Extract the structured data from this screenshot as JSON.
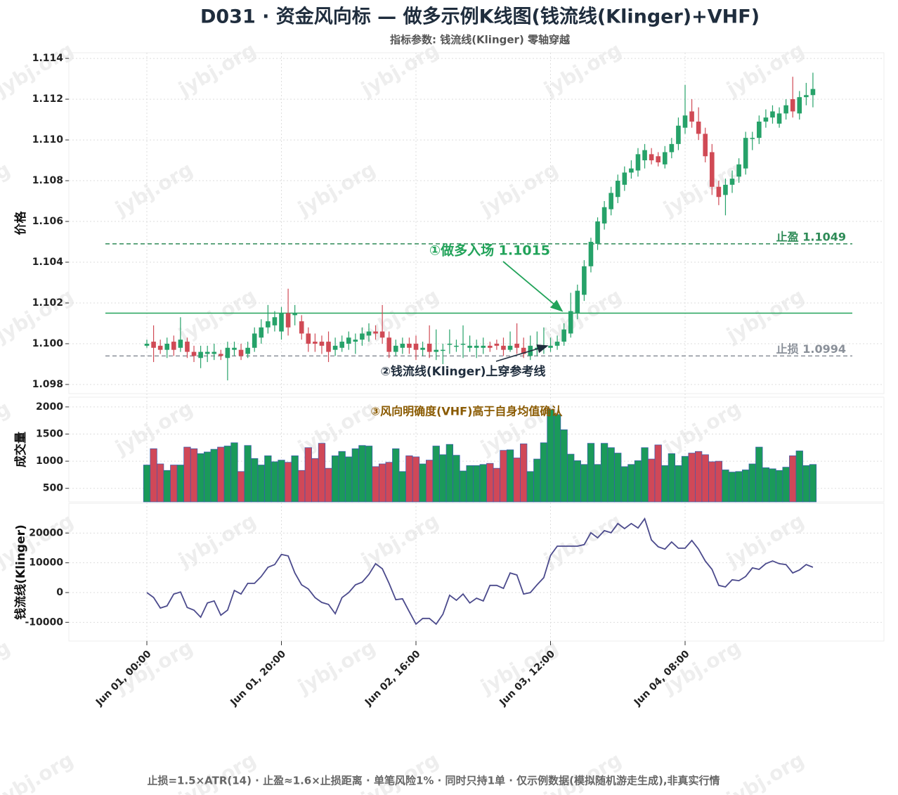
{
  "title": "D031 · 资金风向标 — 做多示例K线图(钱流线(Klinger)+VHF)",
  "subtitle": "指标参数: 钱流线(Klinger) 零轴穿越",
  "footnote": "止损=1.5×ATR(14) · 止盈≈1.6×止损距离 · 单笔风险1% · 同时只持1单 · 仅示例数据(模拟随机游走生成),非真实行情",
  "watermark": "jybj.org",
  "chart_data": [
    {
      "type": "candlestick",
      "y_label": "价格",
      "up_color": "#26a269",
      "down_color": "#d04a55",
      "grid": true,
      "x": [
        "Jun 01, 00:00",
        "Jun 01, 01:00",
        "Jun 01, 02:00",
        "Jun 01, 03:00",
        "Jun 01, 04:00",
        "Jun 01, 05:00",
        "Jun 01, 06:00",
        "Jun 01, 07:00",
        "Jun 01, 08:00",
        "Jun 01, 09:00",
        "Jun 01, 10:00",
        "Jun 01, 11:00",
        "Jun 01, 12:00",
        "Jun 01, 13:00",
        "Jun 01, 14:00",
        "Jun 01, 15:00",
        "Jun 01, 16:00",
        "Jun 01, 17:00",
        "Jun 01, 18:00",
        "Jun 01, 19:00",
        "Jun 01, 20:00",
        "Jun 01, 21:00",
        "Jun 01, 22:00",
        "Jun 01, 23:00",
        "Jun 02, 00:00",
        "Jun 02, 01:00",
        "Jun 02, 02:00",
        "Jun 02, 03:00",
        "Jun 02, 04:00",
        "Jun 02, 05:00",
        "Jun 02, 06:00",
        "Jun 02, 07:00",
        "Jun 02, 08:00",
        "Jun 02, 09:00",
        "Jun 02, 10:00",
        "Jun 02, 11:00",
        "Jun 02, 12:00",
        "Jun 02, 13:00",
        "Jun 02, 14:00",
        "Jun 02, 15:00",
        "Jun 02, 16:00",
        "Jun 02, 17:00",
        "Jun 02, 18:00",
        "Jun 02, 19:00",
        "Jun 02, 20:00",
        "Jun 02, 21:00",
        "Jun 02, 22:00",
        "Jun 02, 23:00",
        "Jun 03, 00:00",
        "Jun 03, 01:00",
        "Jun 03, 02:00",
        "Jun 03, 03:00",
        "Jun 03, 04:00",
        "Jun 03, 05:00",
        "Jun 03, 06:00",
        "Jun 03, 07:00",
        "Jun 03, 08:00",
        "Jun 03, 09:00",
        "Jun 03, 10:00",
        "Jun 03, 11:00",
        "Jun 03, 12:00",
        "Jun 03, 13:00",
        "Jun 03, 14:00",
        "Jun 03, 15:00",
        "Jun 03, 16:00",
        "Jun 03, 17:00",
        "Jun 03, 18:00",
        "Jun 03, 19:00",
        "Jun 03, 20:00",
        "Jun 03, 21:00",
        "Jun 03, 22:00",
        "Jun 03, 23:00",
        "Jun 04, 00:00",
        "Jun 04, 01:00",
        "Jun 04, 02:00",
        "Jun 04, 03:00",
        "Jun 04, 04:00",
        "Jun 04, 05:00",
        "Jun 04, 06:00",
        "Jun 04, 07:00",
        "Jun 04, 08:00",
        "Jun 04, 09:00",
        "Jun 04, 10:00",
        "Jun 04, 11:00",
        "Jun 04, 12:00",
        "Jun 04, 13:00",
        "Jun 04, 14:00",
        "Jun 04, 15:00",
        "Jun 04, 16:00",
        "Jun 04, 17:00",
        "Jun 04, 18:00",
        "Jun 04, 19:00",
        "Jun 04, 20:00",
        "Jun 04, 21:00",
        "Jun 04, 22:00",
        "Jun 04, 23:00",
        "Jun 05, 00:00",
        "Jun 05, 01:00",
        "Jun 05, 02:00",
        "Jun 05, 03:00"
      ],
      "open": [
        1.0999,
        1.1001,
        1.0999,
        1.0997,
        1.1001,
        1.0998,
        1.1001,
        1.0996,
        1.0993,
        1.0995,
        1.0995,
        1.0995,
        1.0993,
        1.0997,
        1.0997,
        1.0995,
        1.0998,
        1.1003,
        1.1008,
        1.1009,
        1.1006,
        1.1015,
        1.1014,
        1.1011,
        1.1005,
        1.1001,
        1.1001,
        1.1001,
        1.0997,
        1.0998,
        1.1,
        1.1001,
        1.1002,
        1.1004,
        1.1006,
        1.1006,
        1.1003,
        1.0996,
        1.0998,
        1.1,
        1.1,
        1.0997,
        1.1,
        1.0996,
        1.0997,
        1.1,
        1.0999,
        1.1,
        1.0998,
        1.0998,
        1.0998,
        1.0999,
        1.1,
        1.0999,
        1.0997,
        1.1,
        1.0998,
        1.0994,
        1.0998,
        1.0998,
        1.0998,
        1.0999,
        1.1001,
        1.1005,
        1.1015,
        1.1024,
        1.1038,
        1.1049,
        1.1059,
        1.1066,
        1.1072,
        1.1078,
        1.1084,
        1.1085,
        1.109,
        1.1093,
        1.1092,
        1.1088,
        1.1094,
        1.1098,
        1.1106,
        1.1114,
        1.1109,
        1.1103,
        1.1094,
        1.1077,
        1.1073,
        1.1078,
        1.1082,
        1.1086,
        1.1101,
        1.1101,
        1.1109,
        1.1111,
        1.1108,
        1.1113,
        1.112,
        1.1113,
        1.1121,
        1.1122
      ],
      "high": [
        1.1002,
        1.1009,
        1.1002,
        1.1003,
        1.1004,
        1.1013,
        1.1003,
        1.0999,
        1.0999,
        1.0999,
        1.1,
        1.0997,
        1.1001,
        1.1001,
        1.1,
        1.1001,
        1.1008,
        1.1012,
        1.1019,
        1.1016,
        1.1018,
        1.1027,
        1.1019,
        1.1014,
        1.1008,
        1.1005,
        1.1004,
        1.1006,
        1.1003,
        1.1004,
        1.1006,
        1.1005,
        1.1008,
        1.101,
        1.1009,
        1.1019,
        1.1006,
        1.1002,
        1.1003,
        1.1003,
        1.1004,
        1.1001,
        1.1009,
        1.1007,
        1.1,
        1.1007,
        1.1002,
        1.1009,
        1.1004,
        1.1002,
        1.1003,
        1.1001,
        1.1002,
        1.1003,
        1.1006,
        1.101,
        1.1003,
        1.1004,
        1.1006,
        1.1008,
        1.1003,
        1.1004,
        1.101,
        1.1025,
        1.1029,
        1.1041,
        1.1052,
        1.1062,
        1.107,
        1.1077,
        1.1083,
        1.1087,
        1.109,
        1.1096,
        1.1098,
        1.1096,
        1.1094,
        1.1097,
        1.1101,
        1.1111,
        1.1127,
        1.112,
        1.1116,
        1.1106,
        1.1098,
        1.108,
        1.1081,
        1.1085,
        1.1091,
        1.1104,
        1.1104,
        1.1112,
        1.1115,
        1.1117,
        1.1116,
        1.112,
        1.1131,
        1.1124,
        1.1128,
        1.1133
      ],
      "low": [
        1.0998,
        1.0991,
        1.0995,
        1.0993,
        1.0994,
        1.0996,
        1.0993,
        1.0991,
        1.0988,
        1.0991,
        1.0992,
        1.0992,
        1.0982,
        1.0994,
        1.0992,
        1.0993,
        1.0996,
        1.1,
        1.1005,
        1.1006,
        1.1002,
        1.1004,
        1.1009,
        1.1002,
        1.0996,
        1.0996,
        1.0995,
        1.0991,
        1.0994,
        1.0996,
        1.0997,
        1.0995,
        1.0999,
        1.1001,
        1.1002,
        1.1,
        1.0993,
        1.0994,
        1.0995,
        1.0995,
        1.0992,
        1.0994,
        1.0993,
        1.0992,
        1.099,
        1.0995,
        1.0996,
        1.0993,
        1.0996,
        1.0993,
        1.0995,
        1.0996,
        1.0997,
        1.0994,
        1.0996,
        1.0995,
        1.0993,
        1.0992,
        1.0994,
        1.0995,
        1.0996,
        1.0997,
        1.0999,
        1.1003,
        1.1012,
        1.1021,
        1.1035,
        1.1046,
        1.1056,
        1.1063,
        1.1069,
        1.1075,
        1.1081,
        1.1082,
        1.1086,
        1.1088,
        1.1087,
        1.1086,
        1.1091,
        1.1095,
        1.1103,
        1.1106,
        1.11,
        1.1089,
        1.1073,
        1.1068,
        1.1063,
        1.1074,
        1.1079,
        1.1083,
        1.1095,
        1.1098,
        1.1106,
        1.1108,
        1.1106,
        1.111,
        1.1111,
        1.111,
        1.1117,
        1.1116
      ],
      "close": [
        1.1,
        1.0998,
        1.0997,
        1.1,
        1.0997,
        1.1002,
        1.0996,
        1.0994,
        1.0996,
        1.0996,
        1.0996,
        1.0994,
        1.0998,
        1.0998,
        1.0994,
        1.0998,
        1.1005,
        1.1008,
        1.1011,
        1.1013,
        1.1015,
        1.1008,
        1.1015,
        1.1005,
        1.1,
        1.1,
        1.0999,
        1.0996,
        1.0999,
        1.1001,
        1.1003,
        1.1002,
        1.1005,
        1.1006,
        1.1005,
        1.1003,
        1.0996,
        1.0999,
        1.1,
        1.0998,
        1.0997,
        1.0998,
        1.0996,
        1.0997,
        1.0997,
        1.1,
        1.0999,
        1.1,
        1.0999,
        1.0999,
        1.0999,
        1.0998,
        1.0999,
        1.0997,
        1.0999,
        1.0998,
        1.0995,
        1.0999,
        1.0998,
        1.0999,
        1.0999,
        1.1001,
        1.1007,
        1.1016,
        1.1026,
        1.1038,
        1.105,
        1.106,
        1.1067,
        1.1074,
        1.108,
        1.1084,
        1.1086,
        1.1093,
        1.1095,
        1.109,
        1.1089,
        1.1094,
        1.1098,
        1.1107,
        1.1112,
        1.1109,
        1.1103,
        1.1092,
        1.1077,
        1.1072,
        1.1078,
        1.1081,
        1.1088,
        1.1101,
        1.1101,
        1.1109,
        1.1111,
        1.1114,
        1.1113,
        1.1117,
        1.1114,
        1.1121,
        1.1122,
        1.1125
      ],
      "ylim": [
        1.09755,
        1.11428
      ],
      "yticks": [
        1.098,
        {
          "value": 1.1,
          "label": "1.100"
        },
        1.102,
        1.104,
        1.106,
        1.108,
        {
          "value": 1.11,
          "label": "1.110"
        },
        1.112,
        1.114
      ],
      "levels": [
        {
          "value": 1.1049,
          "label": "止盈 1.1049",
          "color": "#2e8b57",
          "style": "dashed"
        },
        {
          "value": 1.1015,
          "label": "①做多入场 1.1015",
          "color": "#22a35a",
          "style": "solid"
        },
        {
          "value": 1.0994,
          "label": "止损 1.0994",
          "color": "#8a9099",
          "style": "dashed"
        }
      ],
      "annotations": [
        {
          "text": "②钱流线(Klinger)上穿参考线",
          "color": "#1f2d3d"
        }
      ]
    },
    {
      "type": "bar",
      "y_label": "成交量",
      "edge_color": "#3b5bb0",
      "annotation": "③风向明确度(VHF)高于自身均值确认",
      "annotation_color": "#8a5a00",
      "values": [
        930,
        1230,
        950,
        830,
        930,
        930,
        1260,
        1230,
        1140,
        1170,
        1220,
        1260,
        1280,
        1340,
        810,
        1290,
        1050,
        930,
        1100,
        990,
        1020,
        980,
        1100,
        830,
        1250,
        1050,
        1330,
        870,
        1100,
        1180,
        1080,
        1230,
        1290,
        1280,
        900,
        950,
        980,
        1230,
        810,
        1100,
        1080,
        950,
        1020,
        1280,
        1120,
        1310,
        1110,
        820,
        920,
        920,
        940,
        960,
        870,
        1200,
        1210,
        1060,
        1320,
        810,
        1040,
        1340,
        1950,
        1860,
        1580,
        1130,
        1010,
        940,
        1330,
        940,
        1330,
        1250,
        1150,
        900,
        940,
        1010,
        1250,
        1040,
        1300,
        920,
        1140,
        920,
        1090,
        1150,
        1180,
        1120,
        990,
        1000,
        840,
        800,
        810,
        840,
        950,
        1260,
        880,
        860,
        830,
        890,
        1100,
        1190,
        920,
        940
      ],
      "ylim": [
        250,
        2180
      ],
      "yticks": [
        500,
        1000,
        1500,
        2000
      ]
    },
    {
      "type": "line",
      "y_label": "钱流线(Klinger)",
      "color": "#4b4a8c",
      "values": [
        0,
        -1650,
        -5200,
        -4500,
        -500,
        200,
        -5000,
        -5900,
        -8300,
        -3500,
        -2800,
        -7600,
        -5900,
        700,
        -500,
        3100,
        3100,
        5400,
        8500,
        9400,
        12800,
        12300,
        6600,
        2600,
        1200,
        -1700,
        -3300,
        -4000,
        -7100,
        -1700,
        0,
        2600,
        3500,
        6100,
        9700,
        8000,
        3100,
        -2400,
        -2100,
        -6400,
        -10600,
        -8700,
        -8700,
        -10600,
        -7300,
        -900,
        -2600,
        -500,
        -3500,
        -1900,
        -2800,
        2400,
        2400,
        1400,
        6600,
        5900,
        -500,
        0,
        2600,
        5000,
        12500,
        15600,
        15600,
        15600,
        15600,
        16100,
        20100,
        18400,
        20800,
        20100,
        23200,
        21500,
        23200,
        21700,
        24800,
        17700,
        15400,
        14600,
        17000,
        14900,
        14900,
        17500,
        14600,
        10600,
        7800,
        2400,
        1900,
        4300,
        4000,
        5400,
        8300,
        7800,
        9700,
        10600,
        9700,
        9400,
        6600,
        7600,
        9400,
        8500
      ],
      "ylim": [
        -16300,
        30000
      ],
      "yticks": [
        -10000,
        0,
        10000,
        20000
      ],
      "xticks": [
        "Jun 01, 00:00",
        "Jun 01, 20:00",
        "Jun 02, 16:00",
        "Jun 03, 12:00",
        "Jun 04, 08:00"
      ]
    }
  ]
}
